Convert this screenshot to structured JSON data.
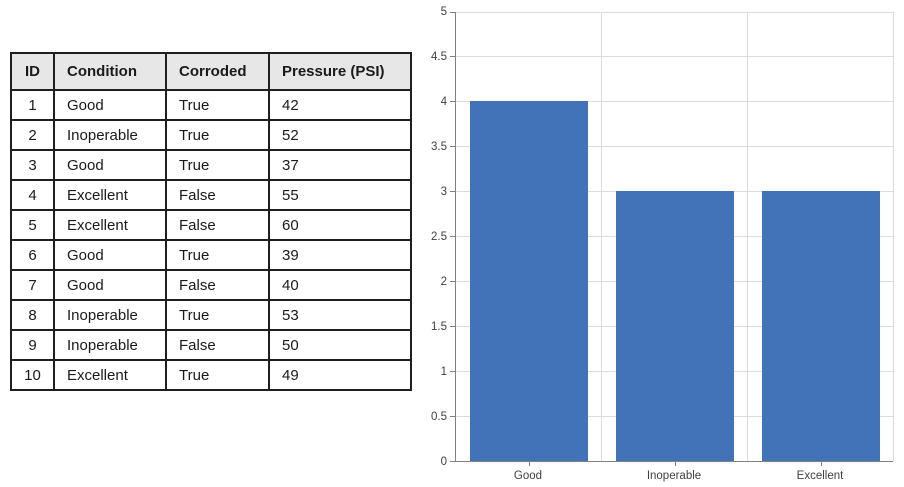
{
  "table": {
    "columns": [
      "ID",
      "Condition",
      "Corroded",
      "Pressure (PSI)"
    ],
    "rows": [
      [
        "1",
        "Good",
        "True",
        "42"
      ],
      [
        "2",
        "Inoperable",
        "True",
        "52"
      ],
      [
        "3",
        "Good",
        "True",
        "37"
      ],
      [
        "4",
        "Excellent",
        "False",
        "55"
      ],
      [
        "5",
        "Excellent",
        "False",
        "60"
      ],
      [
        "6",
        "Good",
        "True",
        "39"
      ],
      [
        "7",
        "Good",
        "False",
        "40"
      ],
      [
        "8",
        "Inoperable",
        "True",
        "53"
      ],
      [
        "9",
        "Inoperable",
        "False",
        "50"
      ],
      [
        "10",
        "Excellent",
        "True",
        "49"
      ]
    ]
  },
  "chart_data": {
    "type": "bar",
    "categories": [
      "Good",
      "Inoperable",
      "Excellent"
    ],
    "values": [
      4,
      3,
      3
    ],
    "title": "",
    "xlabel": "",
    "ylabel": "",
    "ylim": [
      0,
      5
    ],
    "ytick_step": 0.5,
    "grid": true,
    "legend": "none",
    "bar_color": "#4273B8",
    "gridline_color": "#DCDCDC",
    "axis_color": "#808080",
    "tick_label_color": "#404040"
  },
  "colors": {
    "table_header_bg": "#E7E7E7",
    "table_border": "#1F1F1F",
    "text": "#1A1A1A",
    "background": "#FFFFFF"
  }
}
